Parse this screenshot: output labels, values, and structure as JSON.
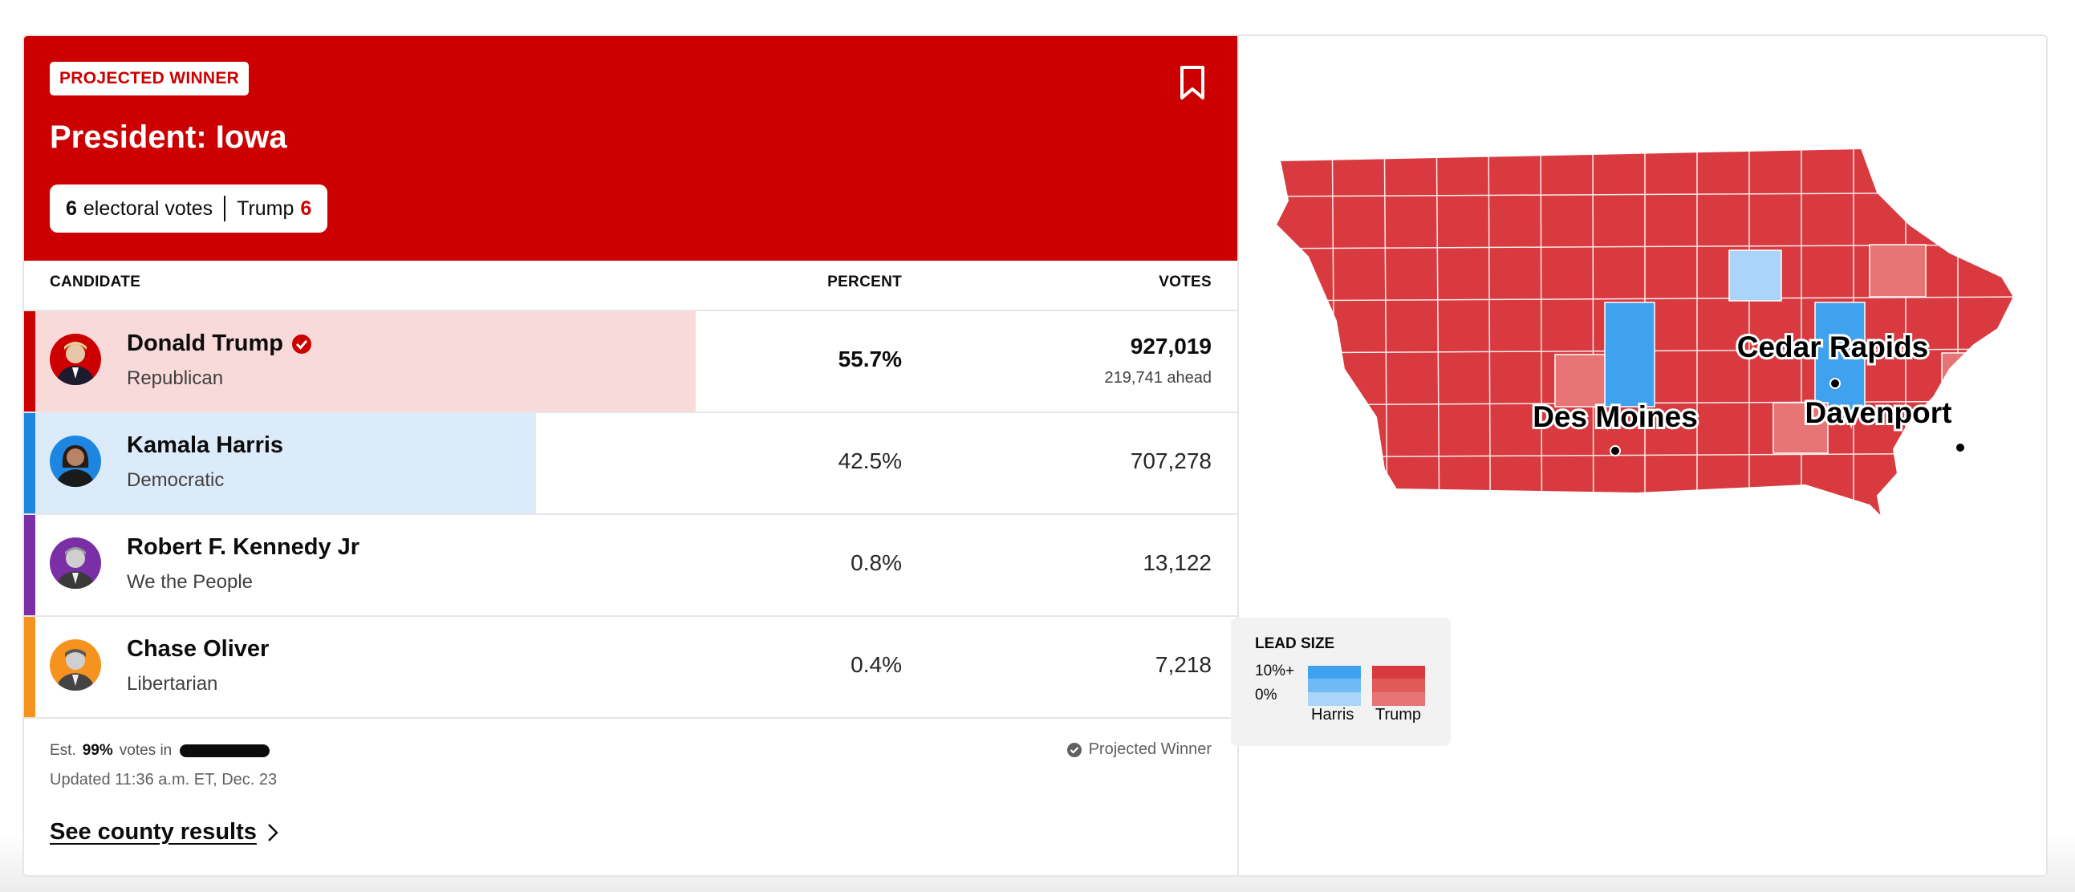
{
  "header": {
    "badge": "PROJECTED WINNER",
    "title": "President: Iowa",
    "ev_count": "6",
    "ev_label": "electoral votes",
    "ev_winner_name": "Trump",
    "ev_winner_count": "6",
    "bookmark_icon": "bookmark-icon"
  },
  "columns": {
    "candidate": "CANDIDATE",
    "percent": "PERCENT",
    "votes": "VOTES"
  },
  "candidates": [
    {
      "name": "Donald Trump",
      "party": "Republican",
      "percent": "55.7%",
      "percent_value": 55.7,
      "votes": "927,019",
      "ahead": "219,741 ahead",
      "winner": true,
      "color": "#cc0000",
      "fill": "#f9dada"
    },
    {
      "name": "Kamala Harris",
      "party": "Democratic",
      "percent": "42.5%",
      "percent_value": 42.5,
      "votes": "707,278",
      "winner": false,
      "color": "#1c86e0",
      "fill": "#dcebfa"
    },
    {
      "name": "Robert F. Kennedy Jr",
      "party": "We the People",
      "percent": "0.8%",
      "percent_value": 0.8,
      "votes": "13,122",
      "winner": false,
      "color": "#7b2fa6"
    },
    {
      "name": "Chase Oliver",
      "party": "Libertarian",
      "percent": "0.4%",
      "percent_value": 0.4,
      "votes": "7,218",
      "winner": false,
      "color": "#f6921e"
    }
  ],
  "footer": {
    "est_prefix": "Est.",
    "est_pct": "99%",
    "est_suffix": "votes in",
    "updated": "Updated 11:36 a.m. ET, Dec. 23",
    "projected": "Projected Winner",
    "see_county": "See county results"
  },
  "map": {
    "cities": [
      "Cedar Rapids",
      "Des Moines",
      "Davenport"
    ],
    "colors": {
      "trump_strong": "#d83a3f",
      "trump_lean": "#e87575",
      "harris_strong": "#3fa2ef",
      "harris_lean": "#a9d5fa"
    }
  },
  "legend": {
    "title": "LEAD SIZE",
    "high": "10%+",
    "low": "0%",
    "harris": "Harris",
    "trump": "Trump"
  }
}
